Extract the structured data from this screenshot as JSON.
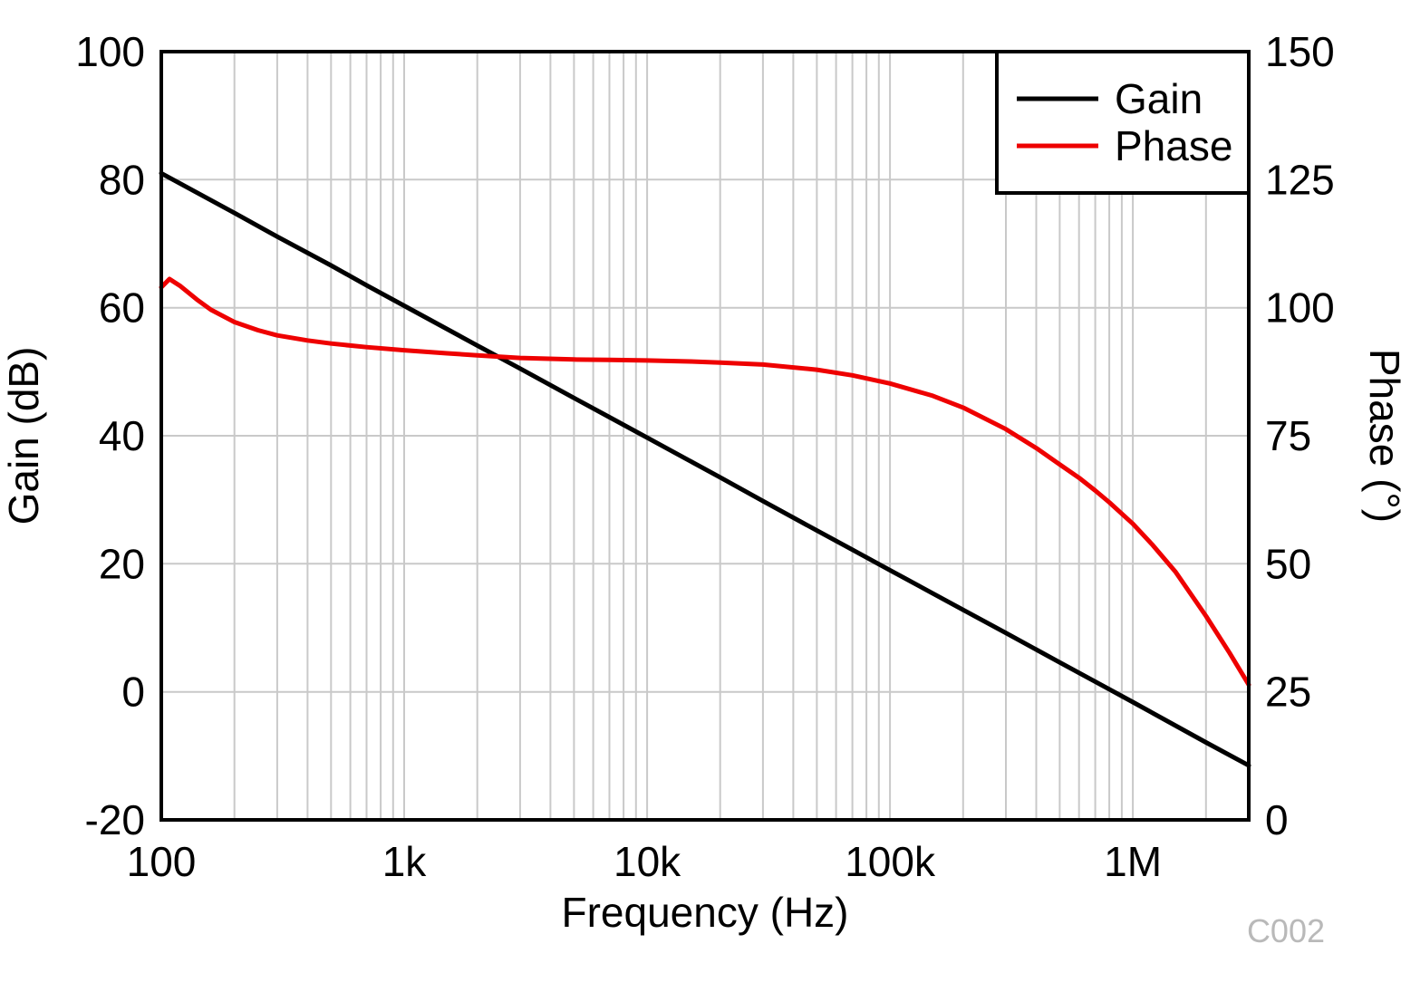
{
  "chart_data": {
    "type": "line",
    "title": "",
    "xlabel": "Frequency (Hz)",
    "ylabel_left": "Gain (dB)",
    "ylabel_right": "Phase (°)",
    "x_scale": "log",
    "xlim": [
      100,
      3000000
    ],
    "ylim_left": [
      -20,
      100
    ],
    "ylim_right": [
      0,
      150
    ],
    "grid": true,
    "grid_color": "#c9c9c9",
    "axis_color": "#000000",
    "x_ticks": [
      {
        "value": 100,
        "label": "100"
      },
      {
        "value": 1000,
        "label": "1k"
      },
      {
        "value": 10000,
        "label": "10k"
      },
      {
        "value": 100000,
        "label": "100k"
      },
      {
        "value": 1000000,
        "label": "1M"
      }
    ],
    "y_ticks_left": [
      {
        "value": 100,
        "label": "100"
      },
      {
        "value": 80,
        "label": "80"
      },
      {
        "value": 60,
        "label": "60"
      },
      {
        "value": 40,
        "label": "40"
      },
      {
        "value": 20,
        "label": "20"
      },
      {
        "value": 0,
        "label": "0"
      },
      {
        "value": -20,
        "label": "-20"
      }
    ],
    "y_ticks_right": [
      {
        "value": 150,
        "label": "150"
      },
      {
        "value": 125,
        "label": "125"
      },
      {
        "value": 100,
        "label": "100"
      },
      {
        "value": 75,
        "label": "75"
      },
      {
        "value": 50,
        "label": "50"
      },
      {
        "value": 25,
        "label": "25"
      },
      {
        "value": 0,
        "label": "0"
      }
    ],
    "legend": {
      "position": "top-right",
      "entries": [
        "Gain",
        "Phase"
      ]
    },
    "series": [
      {
        "name": "Gain",
        "color": "#000000",
        "axis": "left",
        "unit": "dB",
        "points": [
          [
            100,
            81.0
          ],
          [
            200,
            74.8
          ],
          [
            300,
            71.1
          ],
          [
            500,
            66.6
          ],
          [
            700,
            63.5
          ],
          [
            1000,
            60.3
          ],
          [
            2000,
            54.1
          ],
          [
            3000,
            50.5
          ],
          [
            5000,
            45.9
          ],
          [
            7000,
            42.9
          ],
          [
            10000,
            39.7
          ],
          [
            20000,
            33.5
          ],
          [
            30000,
            29.8
          ],
          [
            50000,
            25.2
          ],
          [
            70000,
            22.2
          ],
          [
            100000,
            19.0
          ],
          [
            200000,
            12.8
          ],
          [
            300000,
            9.2
          ],
          [
            500000,
            4.6
          ],
          [
            700000,
            1.6
          ],
          [
            1000000,
            -1.6
          ],
          [
            2000000,
            -7.9
          ],
          [
            3000000,
            -11.5
          ]
        ]
      },
      {
        "name": "Phase",
        "color": "#ee0000",
        "axis": "right",
        "unit": "°",
        "points": [
          [
            100,
            104.0
          ],
          [
            108,
            105.6
          ],
          [
            120,
            104.2
          ],
          [
            140,
            101.6
          ],
          [
            160,
            99.6
          ],
          [
            200,
            97.2
          ],
          [
            250,
            95.6
          ],
          [
            300,
            94.6
          ],
          [
            400,
            93.6
          ],
          [
            500,
            93.0
          ],
          [
            700,
            92.3
          ],
          [
            1000,
            91.7
          ],
          [
            1500,
            91.1
          ],
          [
            2000,
            90.7
          ],
          [
            3000,
            90.2
          ],
          [
            5000,
            89.9
          ],
          [
            7000,
            89.8
          ],
          [
            10000,
            89.7
          ],
          [
            15000,
            89.5
          ],
          [
            20000,
            89.3
          ],
          [
            30000,
            88.9
          ],
          [
            50000,
            87.9
          ],
          [
            70000,
            86.8
          ],
          [
            100000,
            85.2
          ],
          [
            150000,
            82.8
          ],
          [
            200000,
            80.5
          ],
          [
            300000,
            76.3
          ],
          [
            400000,
            72.6
          ],
          [
            500000,
            69.4
          ],
          [
            600000,
            66.8
          ],
          [
            700000,
            64.3
          ],
          [
            800000,
            62.0
          ],
          [
            1000000,
            57.8
          ],
          [
            1200000,
            53.8
          ],
          [
            1500000,
            48.4
          ],
          [
            2000000,
            39.8
          ],
          [
            2500000,
            32.6
          ],
          [
            3000000,
            26.4
          ]
        ]
      }
    ],
    "watermark": "C002",
    "watermark_color": "#b9b9b9"
  }
}
